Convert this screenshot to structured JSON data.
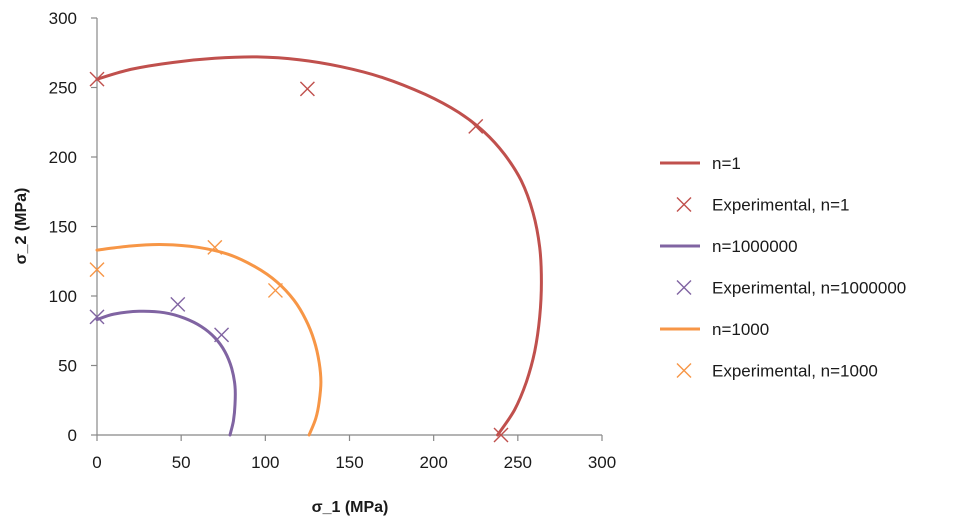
{
  "chart_data": {
    "type": "scatter",
    "title": "",
    "xlabel": "σ_1   (MPa)",
    "ylabel": "σ_2  (MPa)",
    "xlim": [
      0,
      300
    ],
    "ylim": [
      0,
      300
    ],
    "xticks": [
      0,
      50,
      100,
      150,
      200,
      250,
      300
    ],
    "yticks": [
      0,
      50,
      100,
      150,
      200,
      250,
      300
    ],
    "grid": false,
    "legend_position": "right",
    "series": [
      {
        "name": "n=1",
        "kind": "line",
        "color": "#c0504d",
        "points": [
          [
            0,
            256
          ],
          [
            20,
            263
          ],
          [
            45,
            268
          ],
          [
            70,
            271
          ],
          [
            95,
            272
          ],
          [
            120,
            270
          ],
          [
            145,
            265
          ],
          [
            170,
            257
          ],
          [
            195,
            245
          ],
          [
            215,
            232
          ],
          [
            230,
            218
          ],
          [
            242,
            202
          ],
          [
            252,
            183
          ],
          [
            259,
            160
          ],
          [
            263,
            135
          ],
          [
            264,
            110
          ],
          [
            263,
            85
          ],
          [
            260,
            60
          ],
          [
            255,
            38
          ],
          [
            248,
            18
          ],
          [
            238,
            0
          ]
        ]
      },
      {
        "name": "Experimental, n=1",
        "kind": "marker",
        "color": "#c0504d",
        "points": [
          [
            0,
            256
          ],
          [
            125,
            249
          ],
          [
            225,
            222
          ],
          [
            240,
            0
          ]
        ]
      },
      {
        "name": "n=1000000",
        "kind": "line",
        "color": "#8064a2",
        "points": [
          [
            0,
            83
          ],
          [
            10,
            87
          ],
          [
            25,
            89
          ],
          [
            40,
            88
          ],
          [
            52,
            84
          ],
          [
            62,
            78
          ],
          [
            70,
            70
          ],
          [
            76,
            60
          ],
          [
            80,
            48
          ],
          [
            82,
            35
          ],
          [
            82,
            22
          ],
          [
            81,
            10
          ],
          [
            79,
            0
          ]
        ]
      },
      {
        "name": "Experimental, n=1000000",
        "kind": "marker",
        "color": "#8064a2",
        "points": [
          [
            0,
            85
          ],
          [
            48,
            94
          ],
          [
            74,
            72
          ]
        ]
      },
      {
        "name": "n=1000",
        "kind": "line",
        "color": "#f79646",
        "points": [
          [
            0,
            133
          ],
          [
            20,
            136
          ],
          [
            40,
            137
          ],
          [
            60,
            135
          ],
          [
            78,
            130
          ],
          [
            94,
            121
          ],
          [
            107,
            110
          ],
          [
            117,
            97
          ],
          [
            124,
            83
          ],
          [
            129,
            68
          ],
          [
            132,
            52
          ],
          [
            133,
            38
          ],
          [
            132,
            24
          ],
          [
            130,
            12
          ],
          [
            126,
            0
          ]
        ]
      },
      {
        "name": "Experimental, n=1000",
        "kind": "marker",
        "color": "#f79646",
        "points": [
          [
            0,
            119
          ],
          [
            70,
            135
          ],
          [
            106,
            104
          ]
        ]
      }
    ]
  }
}
